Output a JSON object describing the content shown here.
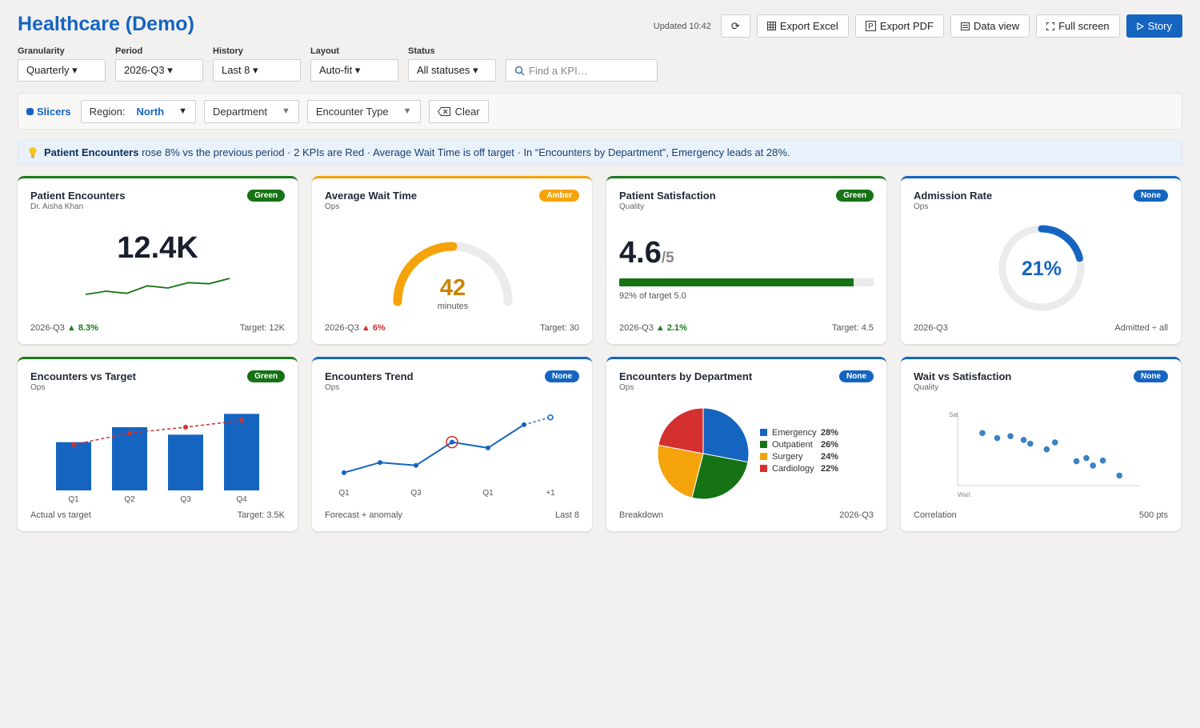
{
  "app": {
    "title": "Healthcare (Demo)",
    "updated": "Updated 10:42"
  },
  "toolbar": {
    "refresh_icon": "⟳",
    "export_excel": "Export Excel",
    "export_pdf": "Export PDF",
    "data_view": "Data view",
    "full_screen": "Full screen",
    "story": "Story"
  },
  "filters": [
    {
      "label": "Granularity",
      "value": "Quarterly ▾"
    },
    {
      "label": "Period",
      "value": "2026-Q3 ▾"
    },
    {
      "label": "History",
      "value": "Last 8 ▾"
    },
    {
      "label": "Layout",
      "value": "Auto-fit ▾"
    },
    {
      "label": "Status",
      "value": "All statuses ▾"
    }
  ],
  "search": {
    "placeholder": "Find a KPI…"
  },
  "slicers": {
    "title": "Slicers",
    "region_label": "Region:",
    "region_value": "North",
    "department": "Department",
    "encounter_type": "Encounter Type",
    "clear": "Clear"
  },
  "insight": {
    "bold": "Patient Encounters",
    "text": " rose 8% vs the previous period · 2 KPIs are Red · Average Wait Time is off target · In “Encounters by Department”, Emergency leads at 28%."
  },
  "colors": {
    "accent": "#1565c0",
    "green": "#157315",
    "amber": "#f5a30a",
    "red": "#d32f2f"
  },
  "cards": {
    "encounters": {
      "title": "Patient Encounters",
      "subtitle": "Dr. Aisha Khan",
      "status": "Green",
      "value": "12.4K",
      "period": "2026-Q3",
      "delta": "▲ 8.3%",
      "target": "Target: 12K",
      "spark": [
        40,
        43,
        41,
        48,
        46,
        51,
        50,
        55
      ]
    },
    "wait_time": {
      "title": "Average Wait Time",
      "subtitle": "Ops",
      "status": "Amber",
      "value": "42",
      "unit": "minutes",
      "fraction": 0.5,
      "period": "2026-Q3",
      "delta": "▲ 6%",
      "target": "Target: 30"
    },
    "satisfaction": {
      "title": "Patient Satisfaction",
      "subtitle": "Quality",
      "status": "Green",
      "value": "4.6",
      "denominator": "/5",
      "progress": 0.92,
      "caption": "92% of target 5.0",
      "period": "2026-Q3",
      "delta": "▲ 2.1%",
      "target": "Target: 4.5"
    },
    "admission": {
      "title": "Admission Rate",
      "subtitle": "Ops",
      "status": "None",
      "value": "21%",
      "fraction": 0.21,
      "period": "2026-Q3",
      "note": "Admitted ÷ all"
    },
    "vs_target": {
      "title": "Encounters vs Target",
      "subtitle": "Ops",
      "status": "Green",
      "foot_left": "Actual vs target",
      "foot_right": "Target: 3.5K"
    },
    "trend": {
      "title": "Encounters Trend",
      "subtitle": "Ops",
      "status": "None",
      "foot_left": "Forecast + anomaly",
      "foot_right": "Last 8"
    },
    "department": {
      "title": "Encounters by Department",
      "subtitle": "Ops",
      "status": "None",
      "foot_left": "Breakdown",
      "foot_right": "2026-Q3"
    },
    "scatter": {
      "title": "Wait vs Satisfaction",
      "subtitle": "Quality",
      "status": "None",
      "foot_left": "Correlation",
      "foot_right": "500 pts"
    }
  },
  "chart_data": [
    {
      "type": "bar",
      "categories": [
        "Q1",
        "Q2",
        "Q3",
        "Q4"
      ],
      "values": [
        2.9,
        3.8,
        3.35,
        4.6
      ],
      "target_line": [
        2.75,
        3.45,
        3.8,
        4.2
      ],
      "ylim": [
        0,
        5
      ]
    },
    {
      "type": "line",
      "x_ticks": [
        "Q1",
        "Q3",
        "Q1",
        "+1"
      ],
      "values": [
        30,
        37,
        35,
        51,
        47,
        63
      ],
      "forecast": [
        63,
        68
      ],
      "anomaly_index": 3,
      "ylim": [
        20,
        75
      ]
    },
    {
      "type": "pie",
      "labels": [
        "Emergency",
        "Outpatient",
        "Surgery",
        "Cardiology"
      ],
      "values": [
        28,
        26,
        24,
        22
      ],
      "value_labels": [
        "28%",
        "26%",
        "24%",
        "22%"
      ],
      "colors": [
        "#1565c0",
        "#157315",
        "#f5a30a",
        "#d32f2f"
      ]
    },
    {
      "type": "scatter",
      "xlabel": "Wait",
      "ylabel": "Sat",
      "points": [
        [
          1.5,
          8.4
        ],
        [
          2.4,
          7.6
        ],
        [
          3.2,
          7.9
        ],
        [
          4.0,
          7.3
        ],
        [
          4.4,
          6.7
        ],
        [
          5.4,
          5.8
        ],
        [
          5.9,
          6.9
        ],
        [
          7.2,
          3.9
        ],
        [
          7.8,
          4.4
        ],
        [
          8.2,
          3.2
        ],
        [
          8.8,
          4.0
        ],
        [
          9.8,
          1.6
        ]
      ],
      "xlim": [
        0,
        11
      ],
      "ylim": [
        0,
        11
      ]
    }
  ]
}
